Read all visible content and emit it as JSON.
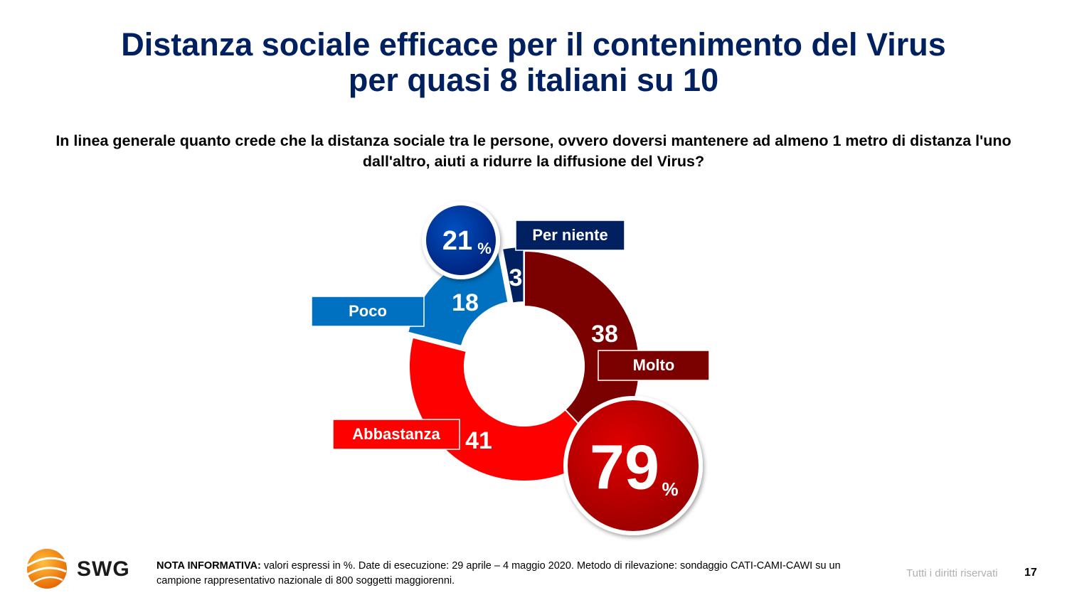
{
  "title_line1": "Distanza sociale efficace per il contenimento del Virus",
  "title_line2": "per quasi 8 italiani su 10",
  "question": "In linea generale quanto crede che la distanza sociale tra le persone, ovvero doversi mantenere ad almeno 1 metro di distanza l'uno dall'altro, aiuti a ridurre la diffusione del Virus?",
  "chart_data": {
    "type": "pie",
    "donut": true,
    "unit": "%",
    "slices": [
      {
        "label": "Molto",
        "value": 38,
        "color": "#7b0000"
      },
      {
        "label": "Abbastanza",
        "value": 41,
        "color": "#ff0000"
      },
      {
        "label": "Poco",
        "value": 18,
        "color": "#0070c0"
      },
      {
        "label": "Per niente",
        "value": 3,
        "color": "#002060"
      }
    ],
    "summaries": [
      {
        "value": "79",
        "unit": "%",
        "color": "#c00000"
      },
      {
        "value": "21",
        "unit": "%",
        "color": "#002f8e"
      }
    ]
  },
  "footer": {
    "note_bold": "NOTA INFORMATIVA:",
    "note_text": " valori espressi in %. Date di esecuzione: 29 aprile – 4 maggio 2020. Metodo di rilevazione: sondaggio CATI-CAMI-CAWI su un campione rappresentativo nazionale di 800 soggetti maggiorenni.",
    "rights": "Tutti i diritti riservati",
    "page": "17",
    "logo_text": "SWG"
  }
}
